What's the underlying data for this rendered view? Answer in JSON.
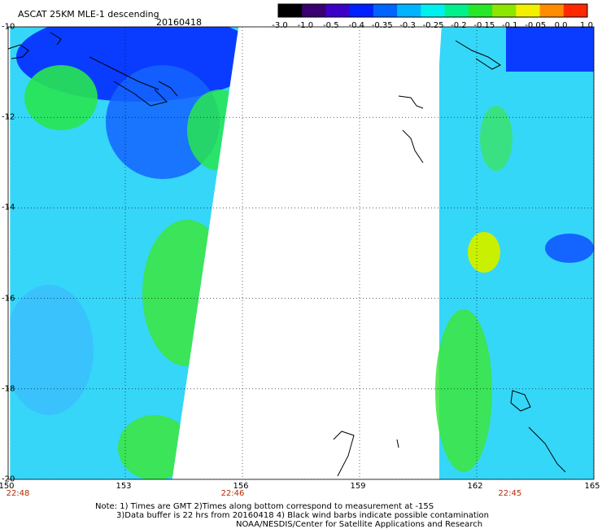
{
  "header": {
    "title": "ASCAT 25KM MLE-1 descending",
    "date": "20160418"
  },
  "colorbar": {
    "labels": [
      "-3.0",
      "-1.0",
      "-0.5",
      "-0.4",
      "-0.35",
      "-0.3",
      "-0.25",
      "-0.2",
      "-0.15",
      "-0.1",
      "-0.05",
      "0.0",
      "1.0"
    ],
    "colors": [
      "#000000",
      "#3a0070",
      "#3c00c8",
      "#0020ff",
      "#0064ff",
      "#00b4ff",
      "#00f0f0",
      "#00f08c",
      "#28e628",
      "#8ce600",
      "#f0f000",
      "#ff8c00",
      "#ff2800"
    ]
  },
  "map": {
    "x_ticks": [
      "150",
      "153",
      "156",
      "159",
      "162",
      "165"
    ],
    "y_ticks": [
      "-10",
      "-12",
      "-14",
      "-16",
      "-18",
      "-20"
    ],
    "lon_range": [
      150,
      165
    ],
    "lat_range": [
      -20,
      -10
    ],
    "pass_times": [
      {
        "label": "22:48",
        "lon": 150
      },
      {
        "label": "22:46",
        "lon": 155.5
      },
      {
        "label": "22:45",
        "lon": 162.6
      }
    ],
    "swaths": [
      {
        "name": "left",
        "lon_edges_top": [
          150.05,
          155.9
        ],
        "lon_edges_bottom": [
          150.05,
          154.2
        ]
      },
      {
        "name": "right",
        "lon_edges_top": [
          161.1,
          165
        ],
        "lon_edges_bottom": [
          160.4,
          165
        ]
      }
    ]
  },
  "notes": {
    "line1": "Note: 1) Times are GMT 2)Times along bottom correspond to measurement at -15S",
    "line2": "3)Data buffer is 22 hrs from 20160418 4) Black wind barbs indicate possible contamination",
    "line3": "NOAA/NESDIS/Center for Satellite Applications and Research"
  }
}
